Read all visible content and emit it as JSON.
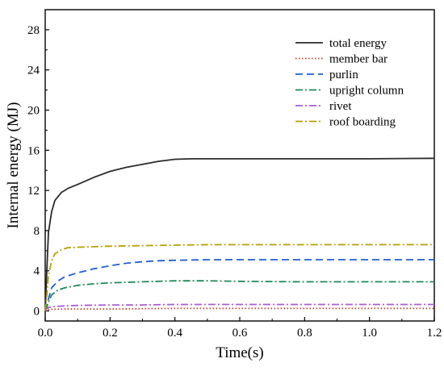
{
  "chart_data": {
    "type": "line",
    "title": "",
    "xlabel": "Time(s)",
    "ylabel": "Internal energy (MJ)",
    "xlim": [
      0,
      1.2
    ],
    "ylim": [
      -1,
      30
    ],
    "x_ticks": [
      0,
      0.2,
      0.4,
      0.6,
      0.8,
      1.0,
      1.2
    ],
    "x_tick_labels": [
      "0.0",
      "0.2",
      "0.4",
      "0.6",
      "0.8",
      "1.0",
      "1.2"
    ],
    "y_ticks": [
      0,
      4,
      8,
      12,
      16,
      20,
      24,
      28
    ],
    "y_tick_labels": [
      "0",
      "4",
      "8",
      "12",
      "16",
      "20",
      "24",
      "28"
    ],
    "grid": false,
    "legend_position": "top-right",
    "series": [
      {
        "name": "total energy",
        "color": "#2b2b2b",
        "dash": "solid",
        "x": [
          0,
          0.005,
          0.01,
          0.02,
          0.03,
          0.05,
          0.07,
          0.1,
          0.15,
          0.2,
          0.25,
          0.3,
          0.35,
          0.4,
          0.45,
          0.5,
          0.6,
          0.8,
          1.0,
          1.2
        ],
        "y": [
          0,
          4,
          7.8,
          9.9,
          11,
          11.8,
          12.2,
          12.6,
          13.3,
          13.9,
          14.3,
          14.6,
          14.9,
          15.1,
          15.15,
          15.15,
          15.15,
          15.15,
          15.15,
          15.2
        ]
      },
      {
        "name": "member bar",
        "color": "#c0392b",
        "dash": "dotted",
        "x": [
          0,
          0.01,
          0.05,
          0.1,
          0.2,
          0.4,
          0.6,
          0.8,
          1.0,
          1.2
        ],
        "y": [
          0,
          0.15,
          0.2,
          0.2,
          0.2,
          0.25,
          0.25,
          0.25,
          0.25,
          0.25
        ]
      },
      {
        "name": "purlin",
        "color": "#1f5fd6",
        "dash": "dashed",
        "x": [
          0,
          0.005,
          0.01,
          0.02,
          0.04,
          0.06,
          0.1,
          0.15,
          0.2,
          0.25,
          0.3,
          0.35,
          0.4,
          0.5,
          0.6,
          0.8,
          1.0,
          1.2
        ],
        "y": [
          0,
          0.5,
          1.2,
          2.3,
          3.0,
          3.4,
          3.8,
          4.2,
          4.5,
          4.75,
          4.9,
          5.0,
          5.05,
          5.1,
          5.1,
          5.1,
          5.1,
          5.1
        ]
      },
      {
        "name": "upright column",
        "color": "#1e8a5a",
        "dash": "dashdot",
        "x": [
          0,
          0.005,
          0.01,
          0.02,
          0.04,
          0.06,
          0.1,
          0.15,
          0.2,
          0.3,
          0.4,
          0.5,
          0.6,
          0.8,
          1.0,
          1.2
        ],
        "y": [
          0,
          0.4,
          0.9,
          1.6,
          2.1,
          2.3,
          2.55,
          2.7,
          2.8,
          2.9,
          3.0,
          3.0,
          2.95,
          2.9,
          2.9,
          2.9
        ]
      },
      {
        "name": "rivet",
        "color": "#a85fd6",
        "dash": "dashdot",
        "x": [
          0,
          0.005,
          0.01,
          0.03,
          0.06,
          0.1,
          0.2,
          0.3,
          0.4,
          0.6,
          0.8,
          1.0,
          1.2
        ],
        "y": [
          0,
          0.2,
          0.35,
          0.45,
          0.5,
          0.55,
          0.6,
          0.6,
          0.65,
          0.65,
          0.65,
          0.65,
          0.65
        ]
      },
      {
        "name": "roof boarding",
        "color": "#b8a000",
        "dash": "dashdot",
        "x": [
          0,
          0.005,
          0.01,
          0.02,
          0.03,
          0.05,
          0.07,
          0.1,
          0.15,
          0.2,
          0.3,
          0.4,
          0.5,
          0.6,
          0.8,
          1.0,
          1.2
        ],
        "y": [
          0,
          1.5,
          3.5,
          5.0,
          5.7,
          6.1,
          6.3,
          6.35,
          6.4,
          6.45,
          6.5,
          6.55,
          6.6,
          6.6,
          6.6,
          6.6,
          6.6
        ]
      }
    ]
  }
}
